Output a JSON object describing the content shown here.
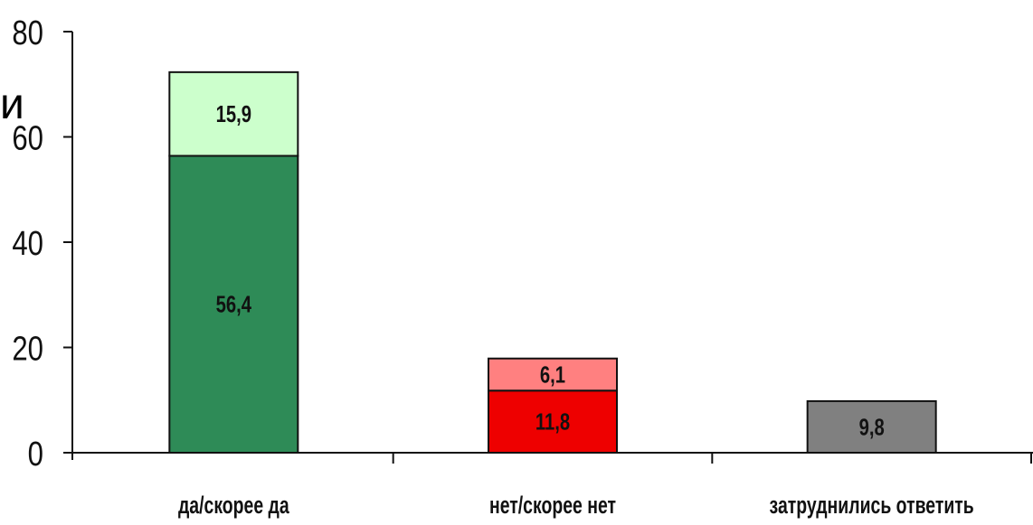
{
  "stray_text": "и",
  "chart_data": {
    "type": "bar",
    "stacked": true,
    "categories": [
      "да/скорее да",
      "нет/скорее нет",
      "затруднились ответить"
    ],
    "segments": [
      [
        {
          "value": 56.4,
          "label": "56,4",
          "color": "#2e8b57"
        },
        {
          "value": 15.9,
          "label": "15,9",
          "color": "#ccffcc"
        }
      ],
      [
        {
          "value": 11.8,
          "label": "11,8",
          "color": "#ee0000"
        },
        {
          "value": 6.1,
          "label": "6,1",
          "color": "#ff8080"
        }
      ],
      [
        {
          "value": 9.8,
          "label": "9,8",
          "color": "#808080"
        }
      ]
    ],
    "ylim": [
      0,
      80
    ],
    "yticks": [
      0,
      20,
      40,
      60,
      80
    ],
    "grid": false,
    "title": "",
    "xlabel": "",
    "ylabel": ""
  }
}
